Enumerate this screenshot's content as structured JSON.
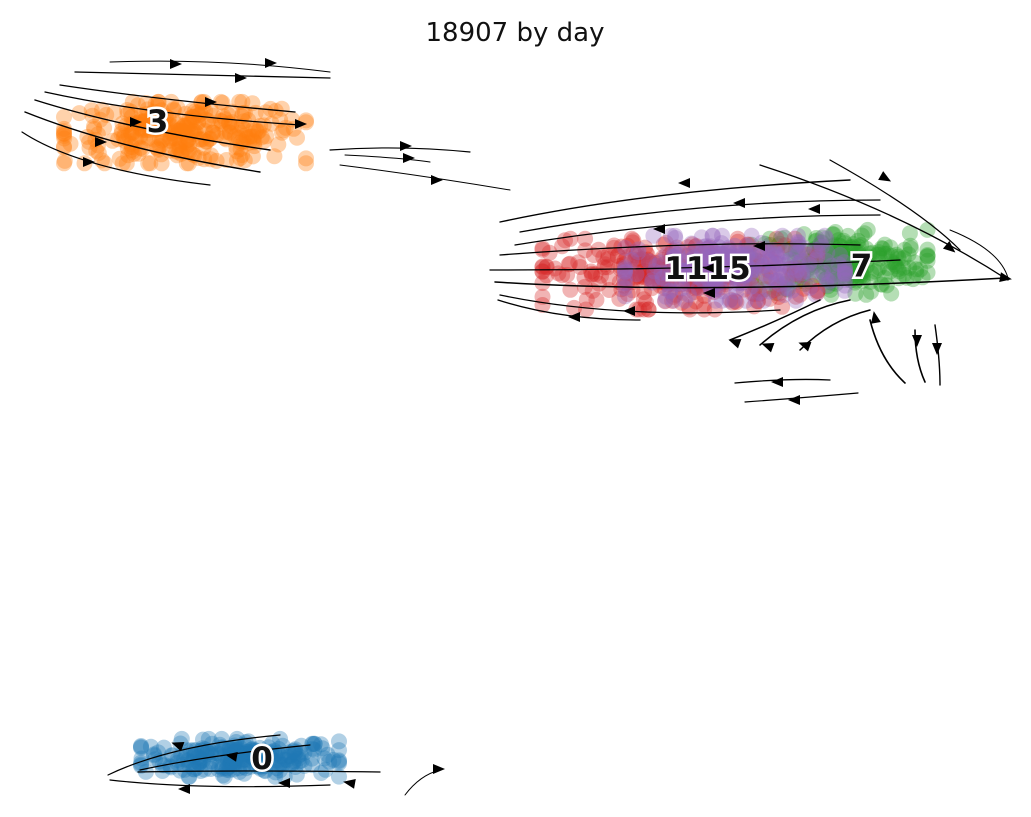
{
  "chart_data": {
    "type": "scatter",
    "title": "18907 by day",
    "xlabel": "",
    "ylabel": "",
    "axes_visible": false,
    "grid": false,
    "legend": "none",
    "overlay": "velocity-streamlines",
    "series": [
      {
        "name": "0",
        "color": "#1f77b4",
        "center": [
          -6.0,
          -6.2
        ],
        "spread": [
          1.8,
          0.32
        ],
        "count": 240
      },
      {
        "name": "3",
        "color": "#ff7f0e",
        "center": [
          -7.0,
          4.4
        ],
        "spread": [
          2.2,
          0.52
        ],
        "count": 300
      },
      {
        "name": "7",
        "color": "#2ca02c",
        "center": [
          4.9,
          2.2
        ],
        "spread": [
          1.6,
          0.55
        ],
        "count": 240
      },
      {
        "name": "11",
        "color": "#d62728",
        "center": [
          2.0,
          2.0
        ],
        "spread": [
          2.5,
          0.6
        ],
        "count": 300
      },
      {
        "name": "15",
        "color": "#9467bd",
        "center": [
          3.0,
          2.1
        ],
        "spread": [
          2.0,
          0.55
        ],
        "count": 300
      }
    ],
    "labels": [
      {
        "text": "3",
        "x": -7.5,
        "y": 4.6
      },
      {
        "text": "1115",
        "x": 2.5,
        "y": 2.1
      },
      {
        "text": "7",
        "x": 5.3,
        "y": 2.15
      },
      {
        "text": "0",
        "x": -5.6,
        "y": -6.2
      }
    ],
    "xlim": [
      -10,
      8
    ],
    "ylim": [
      -7,
      5.8
    ]
  }
}
